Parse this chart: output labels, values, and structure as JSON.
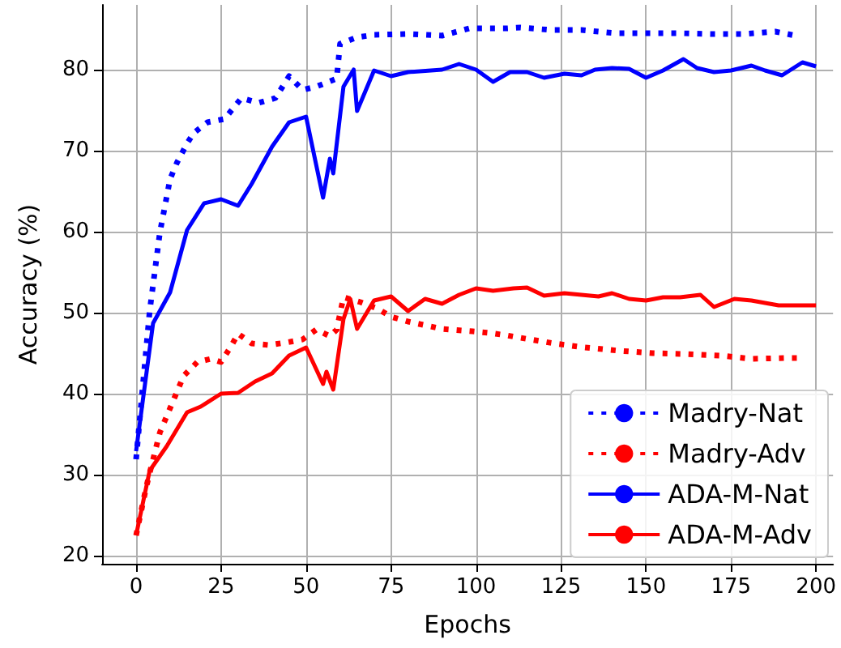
{
  "chart_data": {
    "type": "line",
    "xlabel": "Epochs",
    "ylabel": "Accuracy (%)",
    "xlim": [
      -10,
      205
    ],
    "ylim": [
      19,
      88
    ],
    "xticks": [
      0,
      25,
      50,
      75,
      100,
      125,
      150,
      175,
      200
    ],
    "yticks": [
      20,
      30,
      40,
      50,
      60,
      70,
      80
    ],
    "grid": true,
    "legend": "bottom right",
    "marker": "none",
    "series": [
      {
        "name": "Madry-Nat",
        "color": "#0000ff",
        "line_style": "dotted",
        "x": [
          0,
          4,
          7,
          10,
          12,
          15,
          17,
          21,
          26,
          31,
          36,
          41,
          45,
          49,
          53,
          59,
          60,
          65,
          70,
          80,
          90,
          98,
          104,
          109,
          113,
          122,
          131,
          141,
          151,
          160,
          170,
          179,
          188,
          194
        ],
        "values": [
          31.9,
          50.2,
          59.9,
          66.5,
          68.5,
          70.9,
          72.2,
          73.5,
          73.9,
          76.5,
          75.9,
          76.5,
          79.2,
          77.5,
          77.9,
          78.9,
          83.2,
          84,
          84.3,
          84.4,
          84.2,
          85.1,
          85.1,
          85.1,
          85.2,
          84.9,
          84.9,
          84.5,
          84.5,
          84.5,
          84.4,
          84.4,
          84.7,
          84.2
        ]
      },
      {
        "name": "Madry-Adv",
        "color": "#ff0000",
        "line_style": "dotted",
        "x": [
          0,
          3,
          5,
          7,
          11,
          14,
          18,
          22,
          25,
          28,
          30,
          34,
          39,
          44,
          49,
          53,
          57,
          59,
          61,
          66,
          71,
          75,
          80,
          90,
          99,
          104,
          109,
          113,
          123,
          132,
          142,
          152,
          161,
          172,
          181,
          191,
          196
        ],
        "values": [
          22.5,
          28.5,
          31.9,
          35.2,
          39.2,
          42.2,
          43.9,
          44.3,
          43.9,
          45.9,
          47.4,
          46.2,
          46,
          46.3,
          46.7,
          47.9,
          47.1,
          47.9,
          51.9,
          51.3,
          50.5,
          49.5,
          48.9,
          48,
          47.7,
          47.5,
          47.2,
          46.9,
          46.2,
          45.7,
          45.3,
          45,
          44.9,
          44.7,
          44.3,
          44.4,
          44.4
        ]
      },
      {
        "name": "ADA-M-Nat",
        "color": "#0000ff",
        "line_style": "solid",
        "x": [
          0,
          5,
          10,
          15,
          20,
          25,
          30,
          34,
          40,
          45,
          50,
          55,
          57,
          58,
          61,
          64,
          65,
          70,
          75,
          80,
          90,
          95,
          100,
          105,
          110,
          115,
          120,
          126,
          131,
          135,
          140,
          145,
          150,
          155,
          161,
          165,
          170,
          175,
          181,
          185,
          190,
          196,
          200
        ],
        "values": [
          32.9,
          48.7,
          52.5,
          60.2,
          63.5,
          64,
          63.2,
          65.9,
          70.5,
          73.5,
          74.2,
          64.2,
          69,
          67.2,
          77.9,
          80,
          74.9,
          79.9,
          79.2,
          79.7,
          80,
          80.7,
          80,
          78.5,
          79.7,
          79.7,
          79,
          79.5,
          79.3,
          80,
          80.2,
          80.1,
          79,
          79.9,
          81.3,
          80.2,
          79.7,
          79.9,
          80.5,
          79.9,
          79.3,
          80.9,
          80.4
        ]
      },
      {
        "name": "ADA-M-Adv",
        "color": "#ff0000",
        "line_style": "solid",
        "x": [
          0,
          4,
          9,
          15,
          19,
          25,
          30,
          35,
          40,
          45,
          50,
          55,
          56,
          58,
          61,
          63,
          65,
          70,
          75,
          80,
          85,
          90,
          95,
          100,
          105,
          111,
          115,
          120,
          126,
          136,
          140,
          145,
          150,
          155,
          160,
          166,
          170,
          176,
          181,
          189,
          200
        ],
        "values": [
          22.5,
          30.5,
          33.5,
          37.7,
          38.4,
          40,
          40.1,
          41.5,
          42.5,
          44.7,
          45.7,
          41.2,
          42.7,
          40.5,
          49.2,
          51.7,
          48,
          51.5,
          52,
          50.2,
          51.7,
          51.1,
          52.2,
          53,
          52.7,
          53,
          53.1,
          52.1,
          52.4,
          52,
          52.4,
          51.7,
          51.5,
          51.9,
          51.9,
          52.2,
          50.7,
          51.7,
          51.5,
          50.9,
          50.9
        ]
      }
    ]
  }
}
